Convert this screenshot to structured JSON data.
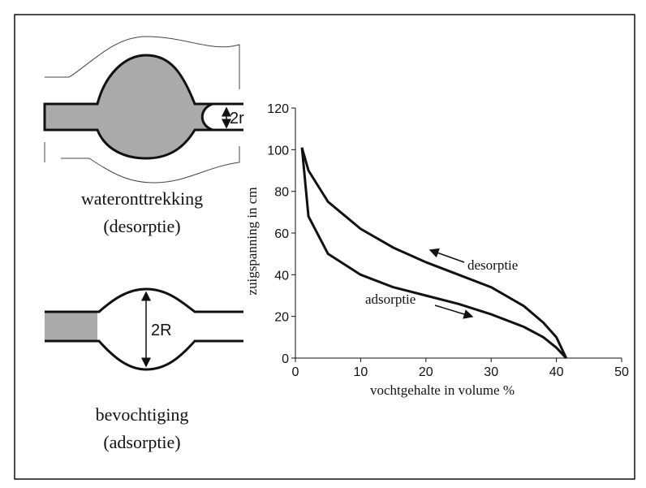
{
  "diagram": {
    "top_label": "wateronttrekking",
    "top_sublabel": "(desorptie)",
    "top_radius": "2r",
    "bottom_label": "bevochtiging",
    "bottom_sublabel": "(adsorptie)",
    "bottom_radius": "2R"
  },
  "chart_data": {
    "type": "line",
    "x_label": "vochtgehalte in volume %",
    "y_label": "zuigspanning in cm",
    "x": [
      1,
      2,
      5,
      10,
      15,
      20,
      25,
      30,
      35,
      38,
      40,
      41.5
    ],
    "series": [
      {
        "name": "desorptie",
        "color": "#111111",
        "values": [
          101,
          90,
          75,
          62,
          53,
          46,
          40,
          34,
          25,
          17,
          10,
          0
        ]
      },
      {
        "name": "adsorptie",
        "color": "#111111",
        "values": [
          101,
          68,
          50,
          40,
          34,
          30,
          26,
          21,
          15,
          10,
          5,
          0
        ]
      }
    ],
    "xlim": [
      0,
      50
    ],
    "xticks": [
      0,
      10,
      20,
      30,
      40,
      50
    ],
    "ylim": [
      0,
      120
    ],
    "yticks": [
      0,
      20,
      40,
      60,
      80,
      100,
      120
    ]
  }
}
